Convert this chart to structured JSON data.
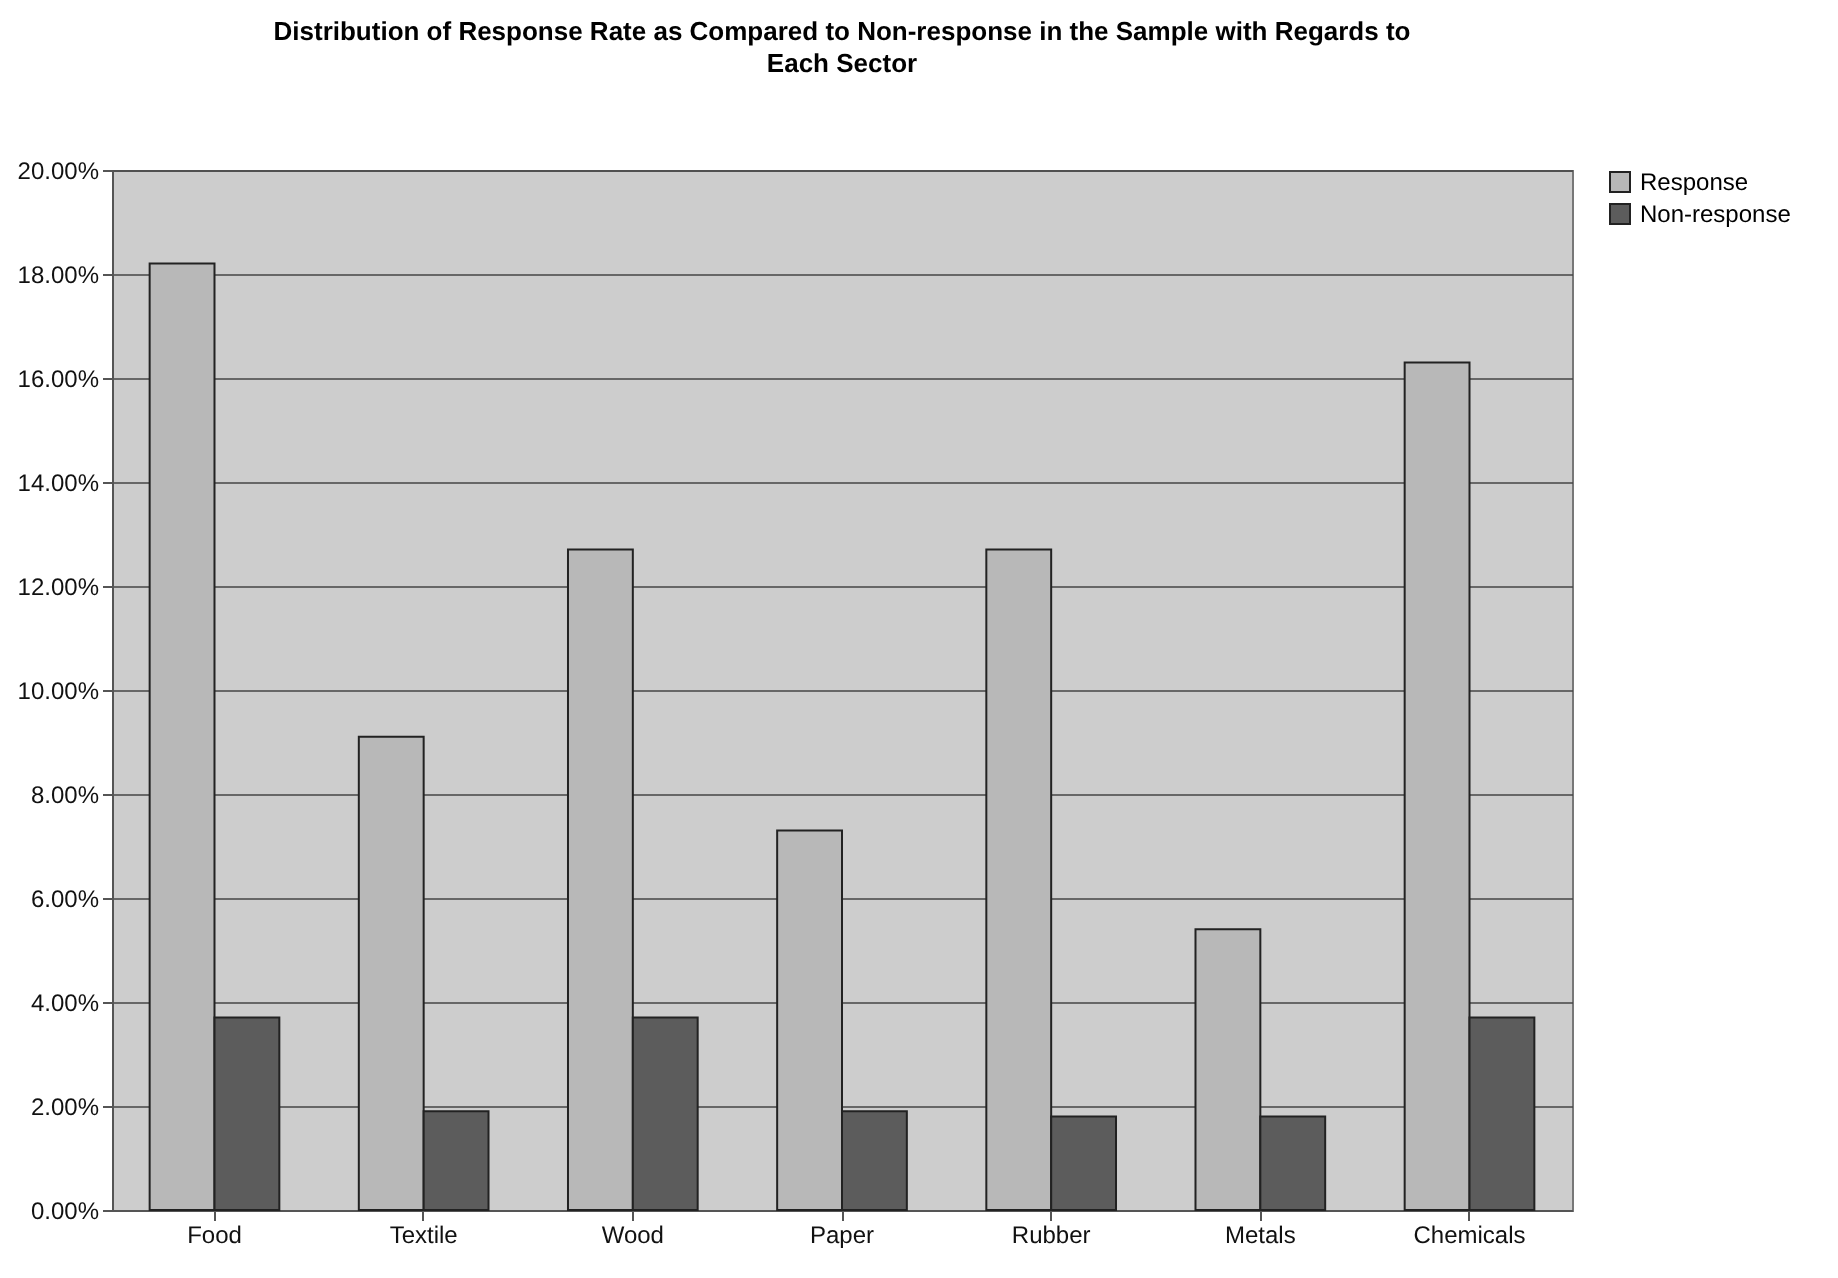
{
  "chart_data": {
    "type": "bar",
    "title": "Distribution of Response Rate as Compared to Non-response in the Sample with Regards to Each Sector",
    "categories": [
      "Food",
      "Textile",
      "Wood",
      "Paper",
      "Rubber",
      "Metals",
      "Chemicals"
    ],
    "series": [
      {
        "name": "Response",
        "color": "#b8b8b8",
        "values": [
          18.2,
          9.1,
          12.7,
          7.3,
          12.7,
          5.4,
          16.3
        ]
      },
      {
        "name": "Non-response",
        "color": "#5c5c5c",
        "values": [
          3.7,
          1.9,
          3.7,
          1.9,
          1.8,
          1.8,
          3.7
        ]
      }
    ],
    "ylim": [
      0,
      20
    ],
    "yticks": [
      {
        "value": 0,
        "label": "0.00%"
      },
      {
        "value": 2,
        "label": "2.00%"
      },
      {
        "value": 4,
        "label": "4.00%"
      },
      {
        "value": 6,
        "label": "6.00%"
      },
      {
        "value": 8,
        "label": "8.00%"
      },
      {
        "value": 10,
        "label": "10.00%"
      },
      {
        "value": 12,
        "label": "12.00%"
      },
      {
        "value": 14,
        "label": "14.00%"
      },
      {
        "value": 16,
        "label": "16.00%"
      },
      {
        "value": 18,
        "label": "18.00%"
      },
      {
        "value": 20,
        "label": "20.00%"
      }
    ],
    "grid": "y",
    "legend": "right"
  }
}
